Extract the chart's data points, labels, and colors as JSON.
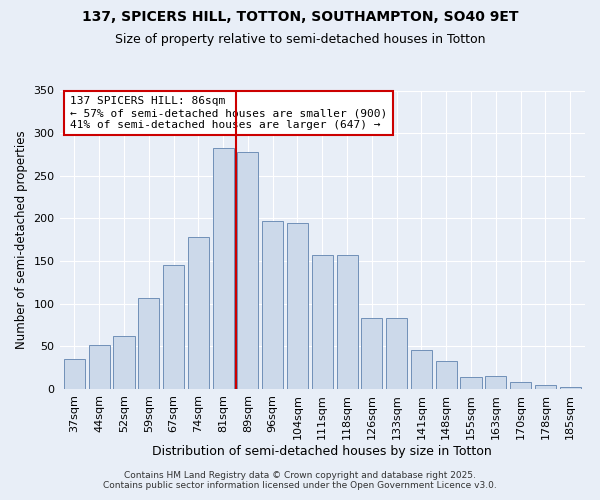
{
  "title": "137, SPICERS HILL, TOTTON, SOUTHAMPTON, SO40 9ET",
  "subtitle": "Size of property relative to semi-detached houses in Totton",
  "xlabel": "Distribution of semi-detached houses by size in Totton",
  "ylabel": "Number of semi-detached properties",
  "categories": [
    "37sqm",
    "44sqm",
    "52sqm",
    "59sqm",
    "67sqm",
    "74sqm",
    "81sqm",
    "89sqm",
    "96sqm",
    "104sqm",
    "111sqm",
    "118sqm",
    "126sqm",
    "133sqm",
    "141sqm",
    "148sqm",
    "155sqm",
    "163sqm",
    "170sqm",
    "178sqm",
    "185sqm"
  ],
  "values": [
    35,
    52,
    62,
    107,
    145,
    178,
    283,
    278,
    197,
    195,
    157,
    157,
    83,
    83,
    46,
    33,
    14,
    15,
    8,
    5,
    2
  ],
  "bar_color": "#ccd9ea",
  "bar_edge_color": "#7090b8",
  "vline_x": 7.5,
  "property_label": "137 SPICERS HILL: 86sqm",
  "pct_smaller": 57,
  "n_smaller": 900,
  "pct_larger": 41,
  "n_larger": 647,
  "vline_color": "#cc0000",
  "annotation_box_color": "#cc0000",
  "ylim": [
    0,
    350
  ],
  "yticks": [
    0,
    50,
    100,
    150,
    200,
    250,
    300,
    350
  ],
  "background_color": "#e8eef7",
  "plot_bg_color": "#e8eef7",
  "footer_line1": "Contains HM Land Registry data © Crown copyright and database right 2025.",
  "footer_line2": "Contains public sector information licensed under the Open Government Licence v3.0.",
  "title_fontsize": 10,
  "subtitle_fontsize": 9,
  "tick_fontsize": 8,
  "ylabel_fontsize": 8.5,
  "xlabel_fontsize": 9,
  "footer_fontsize": 6.5,
  "ann_fontsize": 8
}
